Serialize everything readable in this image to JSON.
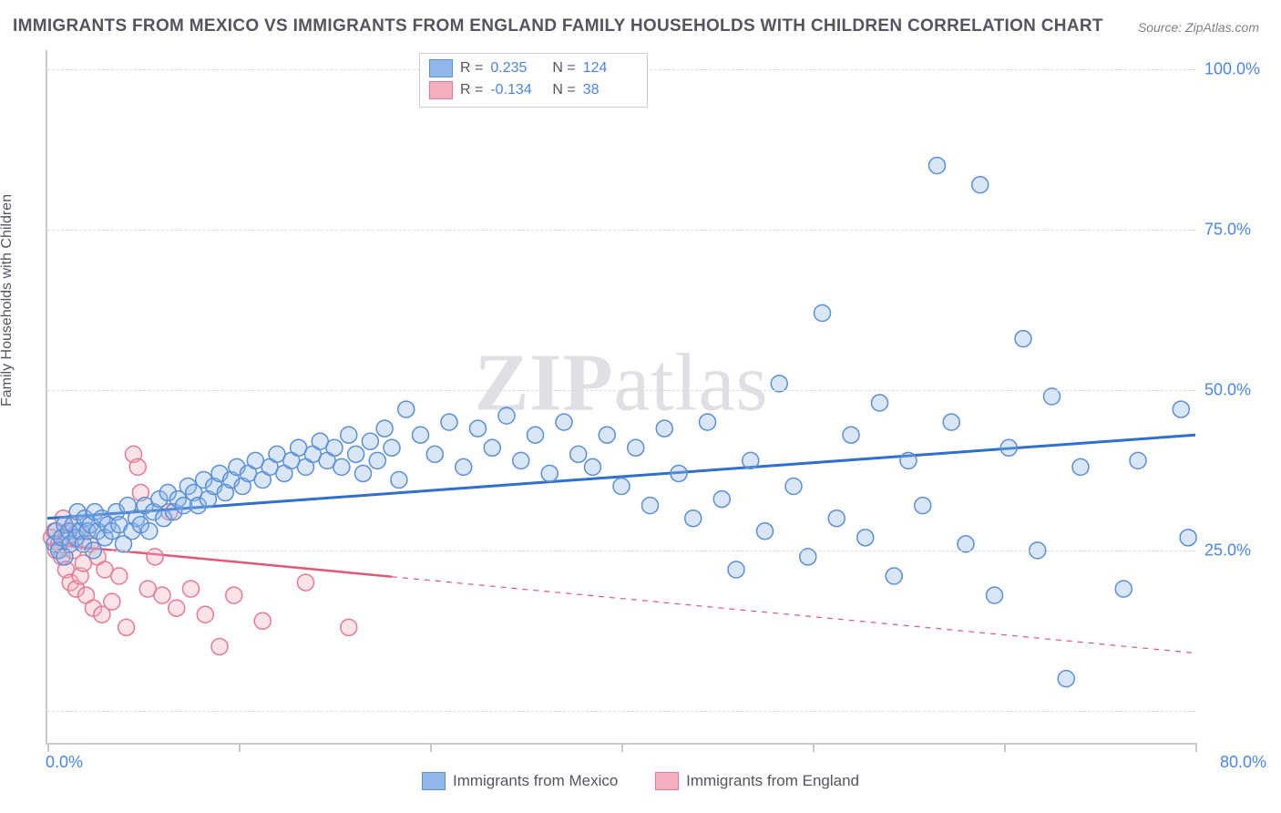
{
  "title": "IMMIGRANTS FROM MEXICO VS IMMIGRANTS FROM ENGLAND FAMILY HOUSEHOLDS WITH CHILDREN CORRELATION CHART",
  "source": "Source: ZipAtlas.com",
  "ylabel": "Family Households with Children",
  "watermark_bold": "ZIP",
  "watermark_light": "atlas",
  "chart": {
    "type": "scatter",
    "xlim": [
      0,
      80
    ],
    "ylim": [
      0,
      108
    ],
    "x_ticks": [
      0,
      13.33,
      26.67,
      40,
      53.33,
      66.67,
      80
    ],
    "y_gridlines": [
      5,
      30,
      55,
      80,
      105
    ],
    "y_tick_labels": [
      {
        "v": 30,
        "t": "25.0%"
      },
      {
        "v": 55,
        "t": "50.0%"
      },
      {
        "v": 80,
        "t": "75.0%"
      },
      {
        "v": 105,
        "t": "100.0%"
      }
    ],
    "x_tick_labels": [
      {
        "v": 0,
        "t": "0.0%"
      },
      {
        "v": 80,
        "t": "80.0%"
      }
    ],
    "background_color": "#ffffff",
    "grid_color": "#d9d9de",
    "axis_color": "#c9c9cf",
    "marker_radius": 9,
    "marker_stroke_width": 1.5,
    "fill_opacity": 0.35
  },
  "series": [
    {
      "key": "mexico",
      "label": "Immigrants from Mexico",
      "fill": "#8fb7e8",
      "stroke": "#5b8fd6",
      "line_color": "#2f6fd0",
      "line_width": 3,
      "R_label": "R =",
      "R": "0.235",
      "N_label": "N =",
      "N": "124",
      "trend": {
        "x1": 0,
        "y1": 35,
        "x2": 80,
        "y2": 48,
        "solid_until": 80
      },
      "points": [
        [
          0.5,
          31
        ],
        [
          0.6,
          33
        ],
        [
          0.8,
          30
        ],
        [
          1.0,
          32
        ],
        [
          1.2,
          29
        ],
        [
          1.2,
          34
        ],
        [
          1.5,
          33
        ],
        [
          1.6,
          31
        ],
        [
          1.8,
          34
        ],
        [
          2.0,
          32
        ],
        [
          2.1,
          36
        ],
        [
          2.3,
          33
        ],
        [
          2.5,
          31
        ],
        [
          2.6,
          35
        ],
        [
          2.8,
          33
        ],
        [
          3.0,
          34
        ],
        [
          3.2,
          30
        ],
        [
          3.3,
          36
        ],
        [
          3.5,
          33
        ],
        [
          3.8,
          35
        ],
        [
          4.0,
          32
        ],
        [
          4.2,
          34
        ],
        [
          4.5,
          33
        ],
        [
          4.8,
          36
        ],
        [
          5.0,
          34
        ],
        [
          5.3,
          31
        ],
        [
          5.6,
          37
        ],
        [
          5.9,
          33
        ],
        [
          6.2,
          35
        ],
        [
          6.5,
          34
        ],
        [
          6.8,
          37
        ],
        [
          7.1,
          33
        ],
        [
          7.4,
          36
        ],
        [
          7.8,
          38
        ],
        [
          8.1,
          35
        ],
        [
          8.4,
          39
        ],
        [
          8.8,
          36
        ],
        [
          9.1,
          38
        ],
        [
          9.5,
          37
        ],
        [
          9.8,
          40
        ],
        [
          10.2,
          39
        ],
        [
          10.5,
          37
        ],
        [
          10.9,
          41
        ],
        [
          11.2,
          38
        ],
        [
          11.6,
          40
        ],
        [
          12.0,
          42
        ],
        [
          12.4,
          39
        ],
        [
          12.8,
          41
        ],
        [
          13.2,
          43
        ],
        [
          13.6,
          40
        ],
        [
          14.0,
          42
        ],
        [
          14.5,
          44
        ],
        [
          15.0,
          41
        ],
        [
          15.5,
          43
        ],
        [
          16.0,
          45
        ],
        [
          16.5,
          42
        ],
        [
          17.0,
          44
        ],
        [
          17.5,
          46
        ],
        [
          18.0,
          43
        ],
        [
          18.5,
          45
        ],
        [
          19.0,
          47
        ],
        [
          19.5,
          44
        ],
        [
          20.0,
          46
        ],
        [
          20.5,
          43
        ],
        [
          21.0,
          48
        ],
        [
          21.5,
          45
        ],
        [
          22.0,
          42
        ],
        [
          22.5,
          47
        ],
        [
          23.0,
          44
        ],
        [
          23.5,
          49
        ],
        [
          24.0,
          46
        ],
        [
          24.5,
          41
        ],
        [
          25.0,
          52
        ],
        [
          26.0,
          48
        ],
        [
          27.0,
          45
        ],
        [
          28.0,
          50
        ],
        [
          29.0,
          43
        ],
        [
          30.0,
          49
        ],
        [
          31.0,
          46
        ],
        [
          32.0,
          51
        ],
        [
          33.0,
          44
        ],
        [
          34.0,
          48
        ],
        [
          35.0,
          42
        ],
        [
          36.0,
          50
        ],
        [
          37.0,
          45
        ],
        [
          38.0,
          43
        ],
        [
          39.0,
          48
        ],
        [
          40.0,
          40
        ],
        [
          41.0,
          46
        ],
        [
          42.0,
          37
        ],
        [
          43.0,
          49
        ],
        [
          44.0,
          42
        ],
        [
          45.0,
          35
        ],
        [
          46.0,
          50
        ],
        [
          47.0,
          38
        ],
        [
          48.0,
          27
        ],
        [
          49.0,
          44
        ],
        [
          50.0,
          33
        ],
        [
          51.0,
          56
        ],
        [
          52.0,
          40
        ],
        [
          53.0,
          29
        ],
        [
          54.0,
          67
        ],
        [
          55.0,
          35
        ],
        [
          56.0,
          48
        ],
        [
          57.0,
          32
        ],
        [
          58.0,
          53
        ],
        [
          59.0,
          26
        ],
        [
          60.0,
          44
        ],
        [
          61.0,
          37
        ],
        [
          62.0,
          90
        ],
        [
          63.0,
          50
        ],
        [
          64.0,
          31
        ],
        [
          65.0,
          87
        ],
        [
          66.0,
          23
        ],
        [
          67.0,
          46
        ],
        [
          68.0,
          63
        ],
        [
          69.0,
          30
        ],
        [
          70.0,
          54
        ],
        [
          71.0,
          10
        ],
        [
          72.0,
          43
        ],
        [
          75.0,
          24
        ],
        [
          76.0,
          44
        ],
        [
          79.0,
          52
        ],
        [
          79.5,
          32
        ]
      ]
    },
    {
      "key": "england",
      "label": "Immigrants from England",
      "fill": "#f4aebe",
      "stroke": "#e77a93",
      "line_color": "#e05a78",
      "line_width": 2.5,
      "R_label": "R =",
      "R": "-0.134",
      "N_label": "N =",
      "N": "38",
      "trend": {
        "x1": 0,
        "y1": 31,
        "x2": 80,
        "y2": 14,
        "solid_until": 24
      },
      "points": [
        [
          0.3,
          32
        ],
        [
          0.5,
          33
        ],
        [
          0.6,
          30
        ],
        [
          0.8,
          31
        ],
        [
          1.0,
          29
        ],
        [
          1.1,
          35
        ],
        [
          1.3,
          27
        ],
        [
          1.4,
          32
        ],
        [
          1.6,
          25
        ],
        [
          1.8,
          30
        ],
        [
          2.0,
          24
        ],
        [
          2.1,
          33
        ],
        [
          2.3,
          26
        ],
        [
          2.5,
          28
        ],
        [
          2.7,
          23
        ],
        [
          3.0,
          31
        ],
        [
          3.2,
          21
        ],
        [
          3.5,
          29
        ],
        [
          3.8,
          20
        ],
        [
          4.0,
          27
        ],
        [
          4.5,
          22
        ],
        [
          5.0,
          26
        ],
        [
          5.5,
          18
        ],
        [
          6.0,
          45
        ],
        [
          6.3,
          43
        ],
        [
          6.5,
          39
        ],
        [
          7.0,
          24
        ],
        [
          7.5,
          29
        ],
        [
          8.0,
          23
        ],
        [
          8.5,
          36
        ],
        [
          9.0,
          21
        ],
        [
          10.0,
          24
        ],
        [
          11.0,
          20
        ],
        [
          12.0,
          15
        ],
        [
          13.0,
          23
        ],
        [
          15.0,
          19
        ],
        [
          18.0,
          25
        ],
        [
          21.0,
          18
        ]
      ]
    }
  ]
}
